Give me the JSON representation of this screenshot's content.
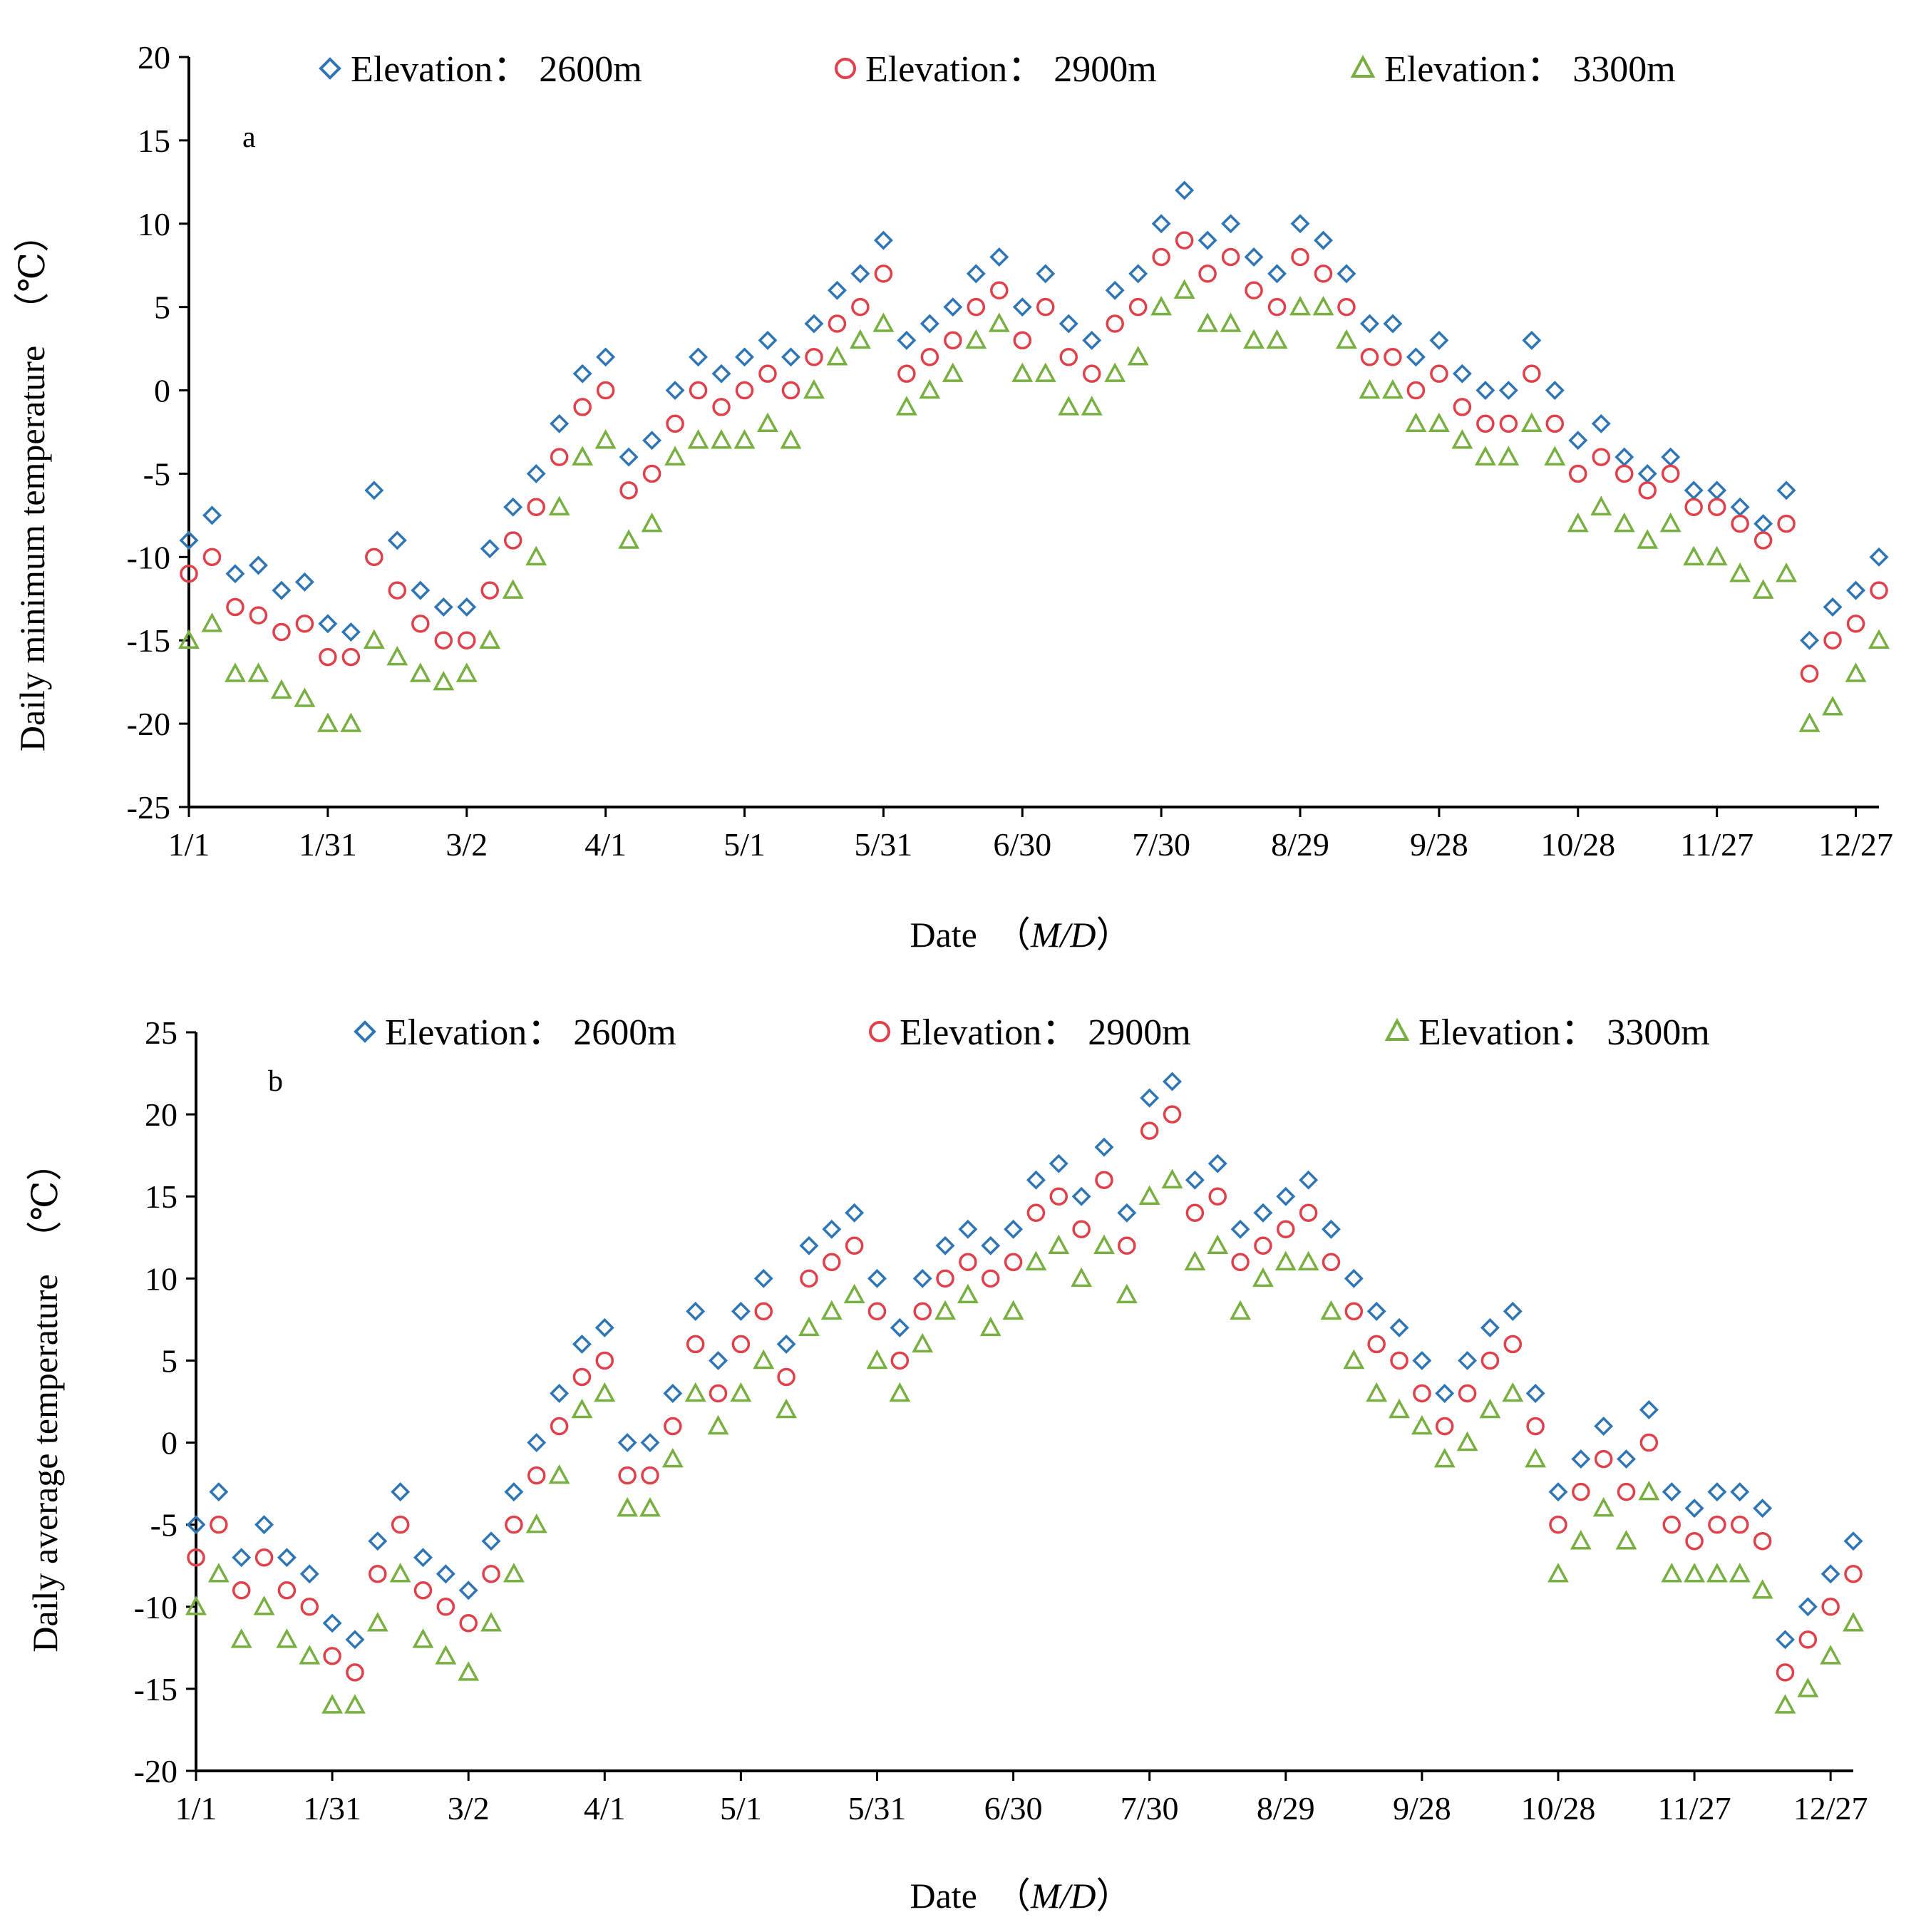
{
  "colors": {
    "series_2600": "#2E75B6",
    "series_2900": "#E0404A",
    "series_3300": "#77B041",
    "axis": "#000000"
  },
  "chart_data": [
    {
      "type": "scatter",
      "panel_label": "a",
      "ylabel": "Daily minimum temperature　（℃）",
      "xlabel_prefix": "Date　（",
      "xlabel_italic": "M/D",
      "xlabel_suffix": "）",
      "ylim": [
        -25,
        20
      ],
      "yticks": [
        20,
        15,
        10,
        5,
        0,
        -5,
        -10,
        -15,
        -20,
        -25
      ],
      "xlim": [
        1,
        366
      ],
      "xticks": [
        1,
        31,
        61,
        91,
        121,
        151,
        181,
        211,
        241,
        271,
        301,
        331,
        361
      ],
      "xticklabels": [
        "1/1",
        "1/31",
        "3/2",
        "4/1",
        "5/1",
        "5/31",
        "6/30",
        "7/30",
        "8/29",
        "9/28",
        "10/28",
        "11/27",
        "12/27"
      ],
      "legend": [
        "Elevation： 2600m",
        "Elevation： 2900m",
        "Elevation： 3300m"
      ],
      "legend_placement": "top-center",
      "series": [
        {
          "name": "Elevation： 2600m",
          "marker": "diamond",
          "x": [
            1,
            6,
            11,
            16,
            21,
            26,
            31,
            36,
            41,
            46,
            51,
            56,
            61,
            66,
            71,
            76,
            81,
            86,
            91,
            96,
            101,
            106,
            111,
            116,
            121,
            126,
            131,
            136,
            141,
            146,
            151,
            156,
            161,
            166,
            171,
            176,
            181,
            186,
            191,
            196,
            201,
            206,
            211,
            216,
            221,
            226,
            231,
            236,
            241,
            246,
            251,
            256,
            261,
            266,
            271,
            276,
            281,
            286,
            291,
            296,
            301,
            306,
            311,
            316,
            321,
            326,
            331,
            336,
            341,
            346,
            351,
            356,
            361,
            366
          ],
          "values": [
            -9,
            -7.5,
            -11,
            -10.5,
            -12,
            -11.5,
            -14,
            -14.5,
            -6,
            -9,
            -12,
            -13,
            -13,
            -9.5,
            -7,
            -5,
            -2,
            1,
            2,
            -4,
            -3,
            0,
            2,
            1,
            2,
            3,
            2,
            4,
            6,
            7,
            9,
            3,
            4,
            5,
            7,
            8,
            5,
            7,
            4,
            3,
            6,
            7,
            10,
            12,
            9,
            10,
            8,
            7,
            10,
            9,
            7,
            4,
            4,
            2,
            3,
            1,
            0,
            0,
            3,
            0,
            -3,
            -2,
            -4,
            -5,
            -4,
            -6,
            -6,
            -7,
            -8,
            -6,
            -15,
            -13,
            -12,
            -10
          ]
        },
        {
          "name": "Elevation： 2900m",
          "marker": "circle",
          "x": [
            1,
            6,
            11,
            16,
            21,
            26,
            31,
            36,
            41,
            46,
            51,
            56,
            61,
            66,
            71,
            76,
            81,
            86,
            91,
            96,
            101,
            106,
            111,
            116,
            121,
            126,
            131,
            136,
            141,
            146,
            151,
            156,
            161,
            166,
            171,
            176,
            181,
            186,
            191,
            196,
            201,
            206,
            211,
            216,
            221,
            226,
            231,
            236,
            241,
            246,
            251,
            256,
            261,
            266,
            271,
            276,
            281,
            286,
            291,
            296,
            301,
            306,
            311,
            316,
            321,
            326,
            331,
            336,
            341,
            346,
            351,
            356,
            361,
            366
          ],
          "values": [
            -11,
            -10,
            -13,
            -13.5,
            -14.5,
            -14,
            -16,
            -16,
            -10,
            -12,
            -14,
            -15,
            -15,
            -12,
            -9,
            -7,
            -4,
            -1,
            0,
            -6,
            -5,
            -2,
            0,
            -1,
            0,
            1,
            0,
            2,
            4,
            5,
            7,
            1,
            2,
            3,
            5,
            6,
            3,
            5,
            2,
            1,
            4,
            5,
            8,
            9,
            7,
            8,
            6,
            5,
            8,
            7,
            5,
            2,
            2,
            0,
            1,
            -1,
            -2,
            -2,
            1,
            -2,
            -5,
            -4,
            -5,
            -6,
            -5,
            -7,
            -7,
            -8,
            -9,
            -8,
            -17,
            -15,
            -14,
            -12
          ]
        },
        {
          "name": "Elevation： 3300m",
          "marker": "triangle",
          "x": [
            1,
            6,
            11,
            16,
            21,
            26,
            31,
            36,
            41,
            46,
            51,
            56,
            61,
            66,
            71,
            76,
            81,
            86,
            91,
            96,
            101,
            106,
            111,
            116,
            121,
            126,
            131,
            136,
            141,
            146,
            151,
            156,
            161,
            166,
            171,
            176,
            181,
            186,
            191,
            196,
            201,
            206,
            211,
            216,
            221,
            226,
            231,
            236,
            241,
            246,
            251,
            256,
            261,
            266,
            271,
            276,
            281,
            286,
            291,
            296,
            301,
            306,
            311,
            316,
            321,
            326,
            331,
            336,
            341,
            346,
            351,
            356,
            361,
            366
          ],
          "values": [
            -15,
            -14,
            -17,
            -17,
            -18,
            -18.5,
            -20,
            -20,
            -15,
            -16,
            -17,
            -17.5,
            -17,
            -15,
            -12,
            -10,
            -7,
            -4,
            -3,
            -9,
            -8,
            -4,
            -3,
            -3,
            -3,
            -2,
            -3,
            0,
            2,
            3,
            4,
            -1,
            0,
            1,
            3,
            4,
            1,
            1,
            -1,
            -1,
            1,
            2,
            5,
            6,
            4,
            4,
            3,
            3,
            5,
            5,
            3,
            0,
            0,
            -2,
            -2,
            -3,
            -4,
            -4,
            -2,
            -4,
            -8,
            -7,
            -8,
            -9,
            -8,
            -10,
            -10,
            -11,
            -12,
            -11,
            -20,
            -19,
            -17,
            -15
          ]
        }
      ]
    },
    {
      "type": "scatter",
      "panel_label": "b",
      "ylabel": "Daily average temperature　（℃）",
      "xlabel_prefix": "Date　（",
      "xlabel_italic": "M/D",
      "xlabel_suffix": "）",
      "ylim": [
        -20,
        25
      ],
      "yticks": [
        25,
        20,
        15,
        10,
        5,
        0,
        -5,
        -10,
        -15,
        -20
      ],
      "xlim": [
        1,
        366
      ],
      "xticks": [
        1,
        31,
        61,
        91,
        121,
        151,
        181,
        211,
        241,
        271,
        301,
        331,
        361
      ],
      "xticklabels": [
        "1/1",
        "1/31",
        "3/2",
        "4/1",
        "5/1",
        "5/31",
        "6/30",
        "7/30",
        "8/29",
        "9/28",
        "10/28",
        "11/27",
        "12/27"
      ],
      "legend": [
        "Elevation： 2600m",
        "Elevation： 2900m",
        "Elevation： 3300m"
      ],
      "legend_placement": "top-center",
      "series": [
        {
          "name": "Elevation： 2600m",
          "marker": "diamond",
          "x": [
            1,
            6,
            11,
            16,
            21,
            26,
            31,
            36,
            41,
            46,
            51,
            56,
            61,
            66,
            71,
            76,
            81,
            86,
            91,
            96,
            101,
            106,
            111,
            116,
            121,
            126,
            131,
            136,
            141,
            146,
            151,
            156,
            161,
            166,
            171,
            176,
            181,
            186,
            191,
            196,
            201,
            206,
            211,
            216,
            221,
            226,
            231,
            236,
            241,
            246,
            251,
            256,
            261,
            266,
            271,
            276,
            281,
            286,
            291,
            296,
            301,
            306,
            311,
            316,
            321,
            326,
            331,
            336,
            341,
            346,
            351,
            356,
            361,
            366
          ],
          "values": [
            -5,
            -3,
            -7,
            -5,
            -7,
            -8,
            -11,
            -12,
            -6,
            -3,
            -7,
            -8,
            -9,
            -6,
            -3,
            0,
            3,
            6,
            7,
            0,
            0,
            3,
            8,
            5,
            8,
            10,
            6,
            12,
            13,
            14,
            10,
            7,
            10,
            12,
            13,
            12,
            13,
            16,
            17,
            15,
            18,
            14,
            21,
            22,
            16,
            17,
            13,
            14,
            15,
            16,
            13,
            10,
            8,
            7,
            5,
            3,
            5,
            7,
            8,
            3,
            -3,
            -1,
            1,
            -1,
            2,
            -3,
            -4,
            -3,
            -3,
            -4,
            -12,
            -10,
            -8,
            -6
          ]
        },
        {
          "name": "Elevation： 2900m",
          "marker": "circle",
          "x": [
            1,
            6,
            11,
            16,
            21,
            26,
            31,
            36,
            41,
            46,
            51,
            56,
            61,
            66,
            71,
            76,
            81,
            86,
            91,
            96,
            101,
            106,
            111,
            116,
            121,
            126,
            131,
            136,
            141,
            146,
            151,
            156,
            161,
            166,
            171,
            176,
            181,
            186,
            191,
            196,
            201,
            206,
            211,
            216,
            221,
            226,
            231,
            236,
            241,
            246,
            251,
            256,
            261,
            266,
            271,
            276,
            281,
            286,
            291,
            296,
            301,
            306,
            311,
            316,
            321,
            326,
            331,
            336,
            341,
            346,
            351,
            356,
            361,
            366
          ],
          "values": [
            -7,
            -5,
            -9,
            -7,
            -9,
            -10,
            -13,
            -14,
            -8,
            -5,
            -9,
            -10,
            -11,
            -8,
            -5,
            -2,
            1,
            4,
            5,
            -2,
            -2,
            1,
            6,
            3,
            6,
            8,
            4,
            10,
            11,
            12,
            8,
            5,
            8,
            10,
            11,
            10,
            11,
            14,
            15,
            13,
            16,
            12,
            19,
            20,
            14,
            15,
            11,
            12,
            13,
            14,
            11,
            8,
            6,
            5,
            3,
            1,
            3,
            5,
            6,
            1,
            -5,
            -3,
            -1,
            -3,
            0,
            -5,
            -6,
            -5,
            -5,
            -6,
            -14,
            -12,
            -10,
            -8
          ]
        },
        {
          "name": "Elevation： 3300m",
          "marker": "triangle",
          "x": [
            1,
            6,
            11,
            16,
            21,
            26,
            31,
            36,
            41,
            46,
            51,
            56,
            61,
            66,
            71,
            76,
            81,
            86,
            91,
            96,
            101,
            106,
            111,
            116,
            121,
            126,
            131,
            136,
            141,
            146,
            151,
            156,
            161,
            166,
            171,
            176,
            181,
            186,
            191,
            196,
            201,
            206,
            211,
            216,
            221,
            226,
            231,
            236,
            241,
            246,
            251,
            256,
            261,
            266,
            271,
            276,
            281,
            286,
            291,
            296,
            301,
            306,
            311,
            316,
            321,
            326,
            331,
            336,
            341,
            346,
            351,
            356,
            361,
            366
          ],
          "values": [
            -10,
            -8,
            -12,
            -10,
            -12,
            -13,
            -16,
            -16,
            -11,
            -8,
            -12,
            -13,
            -14,
            -11,
            -8,
            -5,
            -2,
            2,
            3,
            -4,
            -4,
            -1,
            3,
            1,
            3,
            5,
            2,
            7,
            8,
            9,
            5,
            3,
            6,
            8,
            9,
            7,
            8,
            11,
            12,
            10,
            12,
            9,
            15,
            16,
            11,
            12,
            8,
            10,
            11,
            11,
            8,
            5,
            3,
            2,
            1,
            -1,
            0,
            2,
            3,
            -1,
            -8,
            -6,
            -4,
            -6,
            -3,
            -8,
            -8,
            -8,
            -8,
            -9,
            -16,
            -15,
            -13,
            -11
          ]
        }
      ]
    }
  ]
}
